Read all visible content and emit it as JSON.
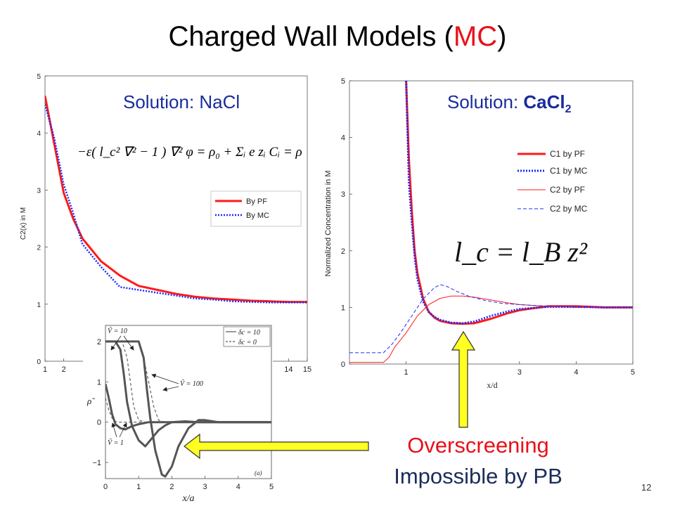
{
  "slide": {
    "title": "Charged Wall Models (",
    "title_accent": "MC",
    "title_end": ")",
    "caption_line1": "Overscreening",
    "caption_line2": "Impossible by PB",
    "page_number": "12"
  },
  "colors": {
    "accent_red": "#e8101a",
    "series_red": "#ff1a1a",
    "series_blue": "#1a2cff",
    "arrow_fill": "#ffff22",
    "subtitle_blue": "#1a2c9c"
  },
  "chart_data": [
    {
      "type": "line",
      "subtitle_prefix": "Solution: ",
      "subtitle_salt": "NaCl",
      "equation": "−ε( l_c² ∇² − 1 ) ∇² φ = ρ₀ + Σᵢ e zᵢ Cᵢ = ρ",
      "ylabel": "C2(x) in M",
      "xlabel": "",
      "xlim": [
        1,
        15
      ],
      "ylim": [
        0,
        5
      ],
      "x_ticks_visible": [
        "1",
        "2",
        "14",
        "15"
      ],
      "y_ticks": [
        "0",
        "1",
        "2",
        "3",
        "4",
        "5"
      ],
      "legend": [
        "By PF",
        "By MC"
      ],
      "legend_position": "center-right",
      "series": [
        {
          "name": "By PF",
          "color": "#ff1a1a",
          "style": "solid",
          "x": [
            1,
            1.5,
            2,
            2.5,
            3,
            3.5,
            4,
            5,
            6,
            7,
            8,
            9,
            10,
            11,
            12,
            13,
            14,
            15
          ],
          "y": [
            4.65,
            3.8,
            2.95,
            2.5,
            2.15,
            1.95,
            1.75,
            1.5,
            1.32,
            1.25,
            1.18,
            1.13,
            1.1,
            1.08,
            1.06,
            1.05,
            1.04,
            1.04
          ]
        },
        {
          "name": "By MC",
          "color": "#1a2cff",
          "style": "dotted",
          "x": [
            1,
            1.5,
            2,
            2.5,
            3,
            3.5,
            4,
            5,
            6,
            7,
            8,
            9,
            10,
            11,
            12,
            13,
            14,
            15
          ],
          "y": [
            4.5,
            3.9,
            3.1,
            2.6,
            2.05,
            1.85,
            1.65,
            1.3,
            1.25,
            1.2,
            1.15,
            1.1,
            1.08,
            1.05,
            1.04,
            1.03,
            1.03,
            1.03
          ]
        }
      ]
    },
    {
      "type": "line",
      "subtitle_prefix": "Solution: ",
      "subtitle_salt": "CaCl",
      "subtitle_sub": "2",
      "equation": "l_c = l_B z²",
      "ylabel": "Normalized Concentration in M",
      "xlabel": "x/d",
      "xlim": [
        0,
        5
      ],
      "ylim": [
        0,
        5
      ],
      "x_ticks": [
        "1",
        "3",
        "4",
        "5"
      ],
      "y_ticks": [
        "0",
        "1",
        "2",
        "3",
        "4",
        "5"
      ],
      "legend": [
        "C1 by PF",
        "C1 by MC",
        "C2 by PF",
        "C2 by MC"
      ],
      "legend_position": "top-right",
      "series": [
        {
          "name": "C1 by PF",
          "color": "#ff1a1a",
          "style": "thick-solid",
          "x": [
            1.0,
            1.05,
            1.1,
            1.15,
            1.2,
            1.3,
            1.4,
            1.5,
            1.6,
            1.8,
            2.0,
            2.2,
            2.5,
            2.8,
            3.0,
            3.5,
            4.0,
            4.5,
            5.0
          ],
          "y": [
            5.0,
            3.6,
            2.7,
            2.0,
            1.6,
            1.15,
            0.92,
            0.82,
            0.76,
            0.72,
            0.71,
            0.72,
            0.8,
            0.9,
            0.95,
            1.02,
            1.02,
            1.0,
            1.0
          ]
        },
        {
          "name": "C1 by MC",
          "color": "#1a2cff",
          "style": "thick-dotted",
          "x": [
            1.0,
            1.05,
            1.1,
            1.15,
            1.2,
            1.3,
            1.4,
            1.5,
            1.6,
            1.8,
            2.0,
            2.2,
            2.5,
            2.8,
            3.0,
            3.5,
            4.0,
            4.5,
            5.0
          ],
          "y": [
            5.0,
            3.2,
            2.5,
            1.9,
            1.5,
            1.1,
            0.92,
            0.83,
            0.78,
            0.73,
            0.72,
            0.75,
            0.85,
            0.93,
            0.97,
            1.01,
            1.01,
            1.0,
            1.0
          ]
        },
        {
          "name": "C2 by PF",
          "color": "#ff1a1a",
          "style": "thin-solid",
          "x": [
            0,
            0.6,
            0.7,
            0.8,
            1.0,
            1.2,
            1.4,
            1.6,
            1.8,
            2.0,
            2.2,
            2.5,
            2.8,
            3.0,
            3.5,
            4.0,
            4.5,
            5.0
          ],
          "y": [
            0.03,
            0.03,
            0.12,
            0.3,
            0.55,
            0.85,
            1.05,
            1.16,
            1.2,
            1.2,
            1.18,
            1.13,
            1.08,
            1.05,
            1.02,
            1.0,
            1.0,
            1.0
          ]
        },
        {
          "name": "C2 by MC",
          "color": "#1a2cff",
          "style": "thin-dashed",
          "x": [
            0,
            0.6,
            0.75,
            0.9,
            1.1,
            1.3,
            1.5,
            1.6,
            1.7,
            1.9,
            2.1,
            2.4,
            2.7,
            3.0,
            3.5,
            4.0,
            4.5,
            5.0
          ],
          "y": [
            0.2,
            0.2,
            0.35,
            0.55,
            0.85,
            1.15,
            1.35,
            1.4,
            1.38,
            1.28,
            1.2,
            1.12,
            1.07,
            1.05,
            1.02,
            1.0,
            1.0,
            1.0
          ]
        }
      ]
    },
    {
      "type": "line",
      "panel_label": "(a)",
      "xlabel": "x/a",
      "ylabel": "ρ̃",
      "xlim": [
        0,
        5
      ],
      "ylim": [
        -1.4,
        2.4
      ],
      "x_ticks": [
        "0",
        "1",
        "2",
        "3",
        "4",
        "5"
      ],
      "y_ticks": [
        "−1",
        "0",
        "1",
        "2"
      ],
      "legend": [
        "δc = 10",
        "δc = 0"
      ],
      "legend_position": "top-right",
      "annotations": [
        "Ṽ = 10",
        "Ṽ = 100",
        "Ṽ = 1"
      ],
      "series": [
        {
          "name": "δc = 10",
          "style": "solid",
          "color": "#555555",
          "x": [
            0,
            0.1,
            0.2,
            0.3,
            0.45,
            0.6,
            0.8,
            1.0,
            1.3,
            1.6,
            2.0,
            2.4,
            2.7,
            3.0,
            3.5,
            4.0,
            5.0
          ],
          "y": [
            0.95,
            0.6,
            0.2,
            -0.05,
            -0.15,
            -0.18,
            -0.1,
            -0.05,
            0.0,
            0.0,
            0.0,
            0.0,
            0.0,
            0.0,
            0.0,
            0.0,
            0.0
          ]
        },
        {
          "name": "δc = 10",
          "style": "solid",
          "color": "#555555",
          "x": [
            0,
            0.3,
            0.45,
            0.55,
            0.65,
            0.8,
            1.0,
            1.2,
            1.4,
            1.6,
            1.8,
            2.0,
            2.4,
            2.8,
            3.2,
            4.0,
            5.0
          ],
          "y": [
            2.0,
            2.0,
            1.8,
            1.2,
            0.5,
            -0.1,
            -0.45,
            -0.6,
            -0.4,
            -0.2,
            -0.08,
            0.0,
            0.02,
            0.0,
            0.0,
            0.0,
            0.0
          ]
        },
        {
          "name": "δc = 10",
          "style": "solid",
          "color": "#555555",
          "x": [
            0,
            1.0,
            1.15,
            1.25,
            1.35,
            1.5,
            1.7,
            1.8,
            2.0,
            2.2,
            2.5,
            2.8,
            3.0,
            3.4,
            4.0,
            5.0
          ],
          "y": [
            2.0,
            2.0,
            1.6,
            0.8,
            0.1,
            -0.7,
            -1.3,
            -1.35,
            -1.1,
            -0.6,
            -0.15,
            0.05,
            0.05,
            0.0,
            0.0,
            0.0
          ]
        },
        {
          "name": "δc = 0",
          "style": "dashed",
          "color": "#555555",
          "x": [
            0,
            0.1,
            0.2,
            0.3,
            0.4,
            0.6,
            1.0,
            5.0
          ],
          "y": [
            0.6,
            0.3,
            0.1,
            0.02,
            0.0,
            0.0,
            0.0,
            0.0
          ]
        },
        {
          "name": "δc = 0",
          "style": "dashed",
          "color": "#555555",
          "x": [
            0,
            0.5,
            0.65,
            0.75,
            0.85,
            1.0,
            1.2,
            5.0
          ],
          "y": [
            2.0,
            2.0,
            1.6,
            1.0,
            0.4,
            0.05,
            0.0,
            0.0
          ]
        },
        {
          "name": "δc = 0",
          "style": "dashed",
          "color": "#555555",
          "x": [
            0,
            1.0,
            1.15,
            1.3,
            1.45,
            1.6,
            1.8,
            5.0
          ],
          "y": [
            2.0,
            2.0,
            1.6,
            1.0,
            0.4,
            0.05,
            0.0,
            0.0
          ]
        }
      ]
    }
  ]
}
